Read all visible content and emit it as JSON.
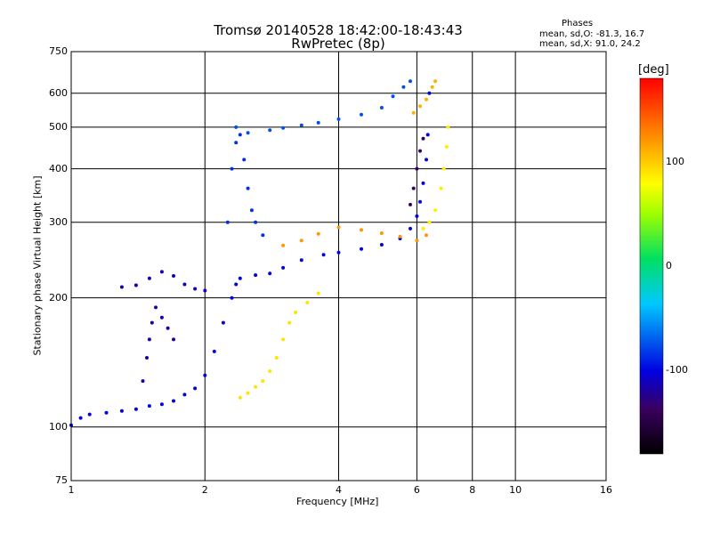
{
  "chart_data": {
    "type": "scatter",
    "title": "Tromsø 20140528 18:42:00-18:43:43",
    "subtitle": "RwPretec (8p)",
    "xlabel": "Frequency [MHz]",
    "ylabel": "Stationary phase Virtual Height [km]",
    "x_scale": "log",
    "y_scale": "log",
    "xlim": [
      1,
      16
    ],
    "ylim": [
      75,
      750
    ],
    "x_ticks": [
      "1",
      "2",
      "4",
      "6",
      "8",
      "10",
      "16"
    ],
    "y_ticks": [
      "75",
      "100",
      "200",
      "300",
      "400",
      "500",
      "600",
      "750"
    ],
    "grid": true,
    "stats": {
      "heading": "Phases",
      "line_o": "mean, sd,O: -81.3, 16.7",
      "line_x": "mean, sd,X:  91.0, 24.2"
    },
    "colorbar": {
      "label": "[deg]",
      "ticks": [
        "100",
        "0",
        "-100"
      ],
      "range": [
        -180,
        180
      ]
    },
    "series": [
      {
        "values": [
          [
            1.0,
            101
          ],
          [
            1.05,
            105
          ],
          [
            1.1,
            107
          ],
          [
            1.2,
            108
          ],
          [
            1.3,
            109
          ],
          [
            1.4,
            110
          ],
          [
            1.5,
            112
          ],
          [
            1.6,
            113
          ],
          [
            1.7,
            115
          ],
          [
            1.8,
            119
          ],
          [
            1.9,
            123
          ],
          [
            2.0,
            132
          ],
          [
            2.1,
            150
          ],
          [
            2.2,
            175
          ],
          [
            2.3,
            200
          ],
          [
            2.35,
            215
          ],
          [
            2.4,
            222
          ],
          [
            2.6,
            226
          ],
          [
            2.8,
            228
          ],
          [
            3.0,
            235
          ],
          [
            3.3,
            245
          ],
          [
            3.7,
            252
          ],
          [
            4.0,
            255
          ],
          [
            4.5,
            260
          ],
          [
            5.0,
            266
          ],
          [
            5.5,
            275
          ],
          [
            5.8,
            290
          ],
          [
            6.0,
            310
          ],
          [
            6.1,
            335
          ],
          [
            6.2,
            370
          ],
          [
            6.3,
            420
          ],
          [
            6.35,
            480
          ],
          [
            6.4,
            600
          ]
        ],
        "phase": -100
      },
      {
        "values": [
          [
            1.3,
            212
          ],
          [
            1.4,
            214
          ],
          [
            1.5,
            222
          ],
          [
            1.6,
            230
          ],
          [
            1.7,
            225
          ],
          [
            1.8,
            215
          ],
          [
            1.9,
            210
          ],
          [
            2.0,
            208
          ]
        ],
        "phase": -110
      },
      {
        "values": [
          [
            1.45,
            128
          ],
          [
            1.48,
            145
          ],
          [
            1.5,
            160
          ],
          [
            1.52,
            175
          ],
          [
            1.55,
            190
          ],
          [
            1.6,
            180
          ],
          [
            1.65,
            170
          ],
          [
            1.7,
            160
          ]
        ],
        "phase": -115
      },
      {
        "values": [
          [
            2.25,
            300
          ],
          [
            2.3,
            400
          ],
          [
            2.35,
            460
          ],
          [
            2.4,
            480
          ],
          [
            2.45,
            420
          ],
          [
            2.5,
            360
          ],
          [
            2.55,
            320
          ],
          [
            2.6,
            300
          ],
          [
            2.7,
            280
          ]
        ],
        "phase": -85
      },
      {
        "values": [
          [
            2.35,
            500
          ],
          [
            2.5,
            485
          ],
          [
            2.8,
            492
          ],
          [
            3.0,
            498
          ],
          [
            3.3,
            505
          ],
          [
            3.6,
            512
          ],
          [
            4.0,
            522
          ],
          [
            4.5,
            535
          ],
          [
            5.0,
            555
          ],
          [
            5.3,
            590
          ],
          [
            5.6,
            620
          ],
          [
            5.8,
            640
          ]
        ],
        "phase": -75
      },
      {
        "values": [
          [
            2.4,
            117
          ],
          [
            2.5,
            120
          ],
          [
            2.6,
            124
          ],
          [
            2.7,
            128
          ],
          [
            2.8,
            135
          ],
          [
            2.9,
            145
          ],
          [
            3.0,
            160
          ],
          [
            3.1,
            175
          ],
          [
            3.2,
            185
          ],
          [
            3.4,
            195
          ],
          [
            3.6,
            205
          ]
        ],
        "phase": 90
      },
      {
        "values": [
          [
            3.0,
            265
          ],
          [
            3.3,
            272
          ],
          [
            3.6,
            282
          ],
          [
            4.0,
            292
          ],
          [
            4.5,
            288
          ],
          [
            5.0,
            283
          ],
          [
            5.5,
            278
          ],
          [
            6.0,
            272
          ],
          [
            6.3,
            280
          ]
        ],
        "phase": 120
      },
      {
        "values": [
          [
            6.2,
            290
          ],
          [
            6.4,
            300
          ],
          [
            6.6,
            320
          ],
          [
            6.8,
            360
          ],
          [
            6.9,
            400
          ],
          [
            7.0,
            450
          ],
          [
            7.05,
            500
          ]
        ],
        "phase": 85
      },
      {
        "values": [
          [
            5.8,
            330
          ],
          [
            5.9,
            360
          ],
          [
            6.0,
            400
          ],
          [
            6.1,
            440
          ],
          [
            6.2,
            470
          ]
        ],
        "phase": -140
      },
      {
        "values": [
          [
            5.9,
            540
          ],
          [
            6.1,
            560
          ],
          [
            6.3,
            580
          ],
          [
            6.5,
            620
          ],
          [
            6.6,
            640
          ]
        ],
        "phase": 110
      }
    ]
  }
}
